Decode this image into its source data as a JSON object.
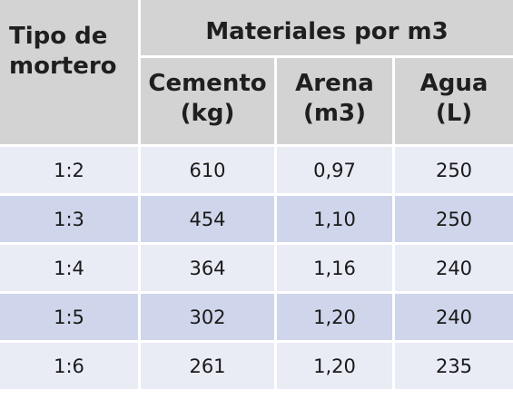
{
  "table": {
    "header": {
      "tipo_line1": "Tipo de",
      "tipo_line2": "mortero",
      "group_title": "Materiales por m3",
      "columns": [
        {
          "name": "Cemento",
          "unit": "(kg)"
        },
        {
          "name": "Arena",
          "unit": "(m3)"
        },
        {
          "name": "Agua",
          "unit": "(L)"
        }
      ]
    },
    "rows": [
      {
        "tipo": "1:2",
        "cemento": "610",
        "arena": "0,97",
        "agua": "250"
      },
      {
        "tipo": "1:3",
        "cemento": "454",
        "arena": "1,10",
        "agua": "250"
      },
      {
        "tipo": "1:4",
        "cemento": "364",
        "arena": "1,16",
        "agua": "240"
      },
      {
        "tipo": "1:5",
        "cemento": "302",
        "arena": "1,20",
        "agua": "240"
      },
      {
        "tipo": "1:6",
        "cemento": "261",
        "arena": "1,20",
        "agua": "235"
      }
    ]
  },
  "colors": {
    "header_bg": "#d3d3d3",
    "row_light": "#e9ebf5",
    "row_dark": "#cfd5ea",
    "grid_lines": "#ffffff"
  }
}
